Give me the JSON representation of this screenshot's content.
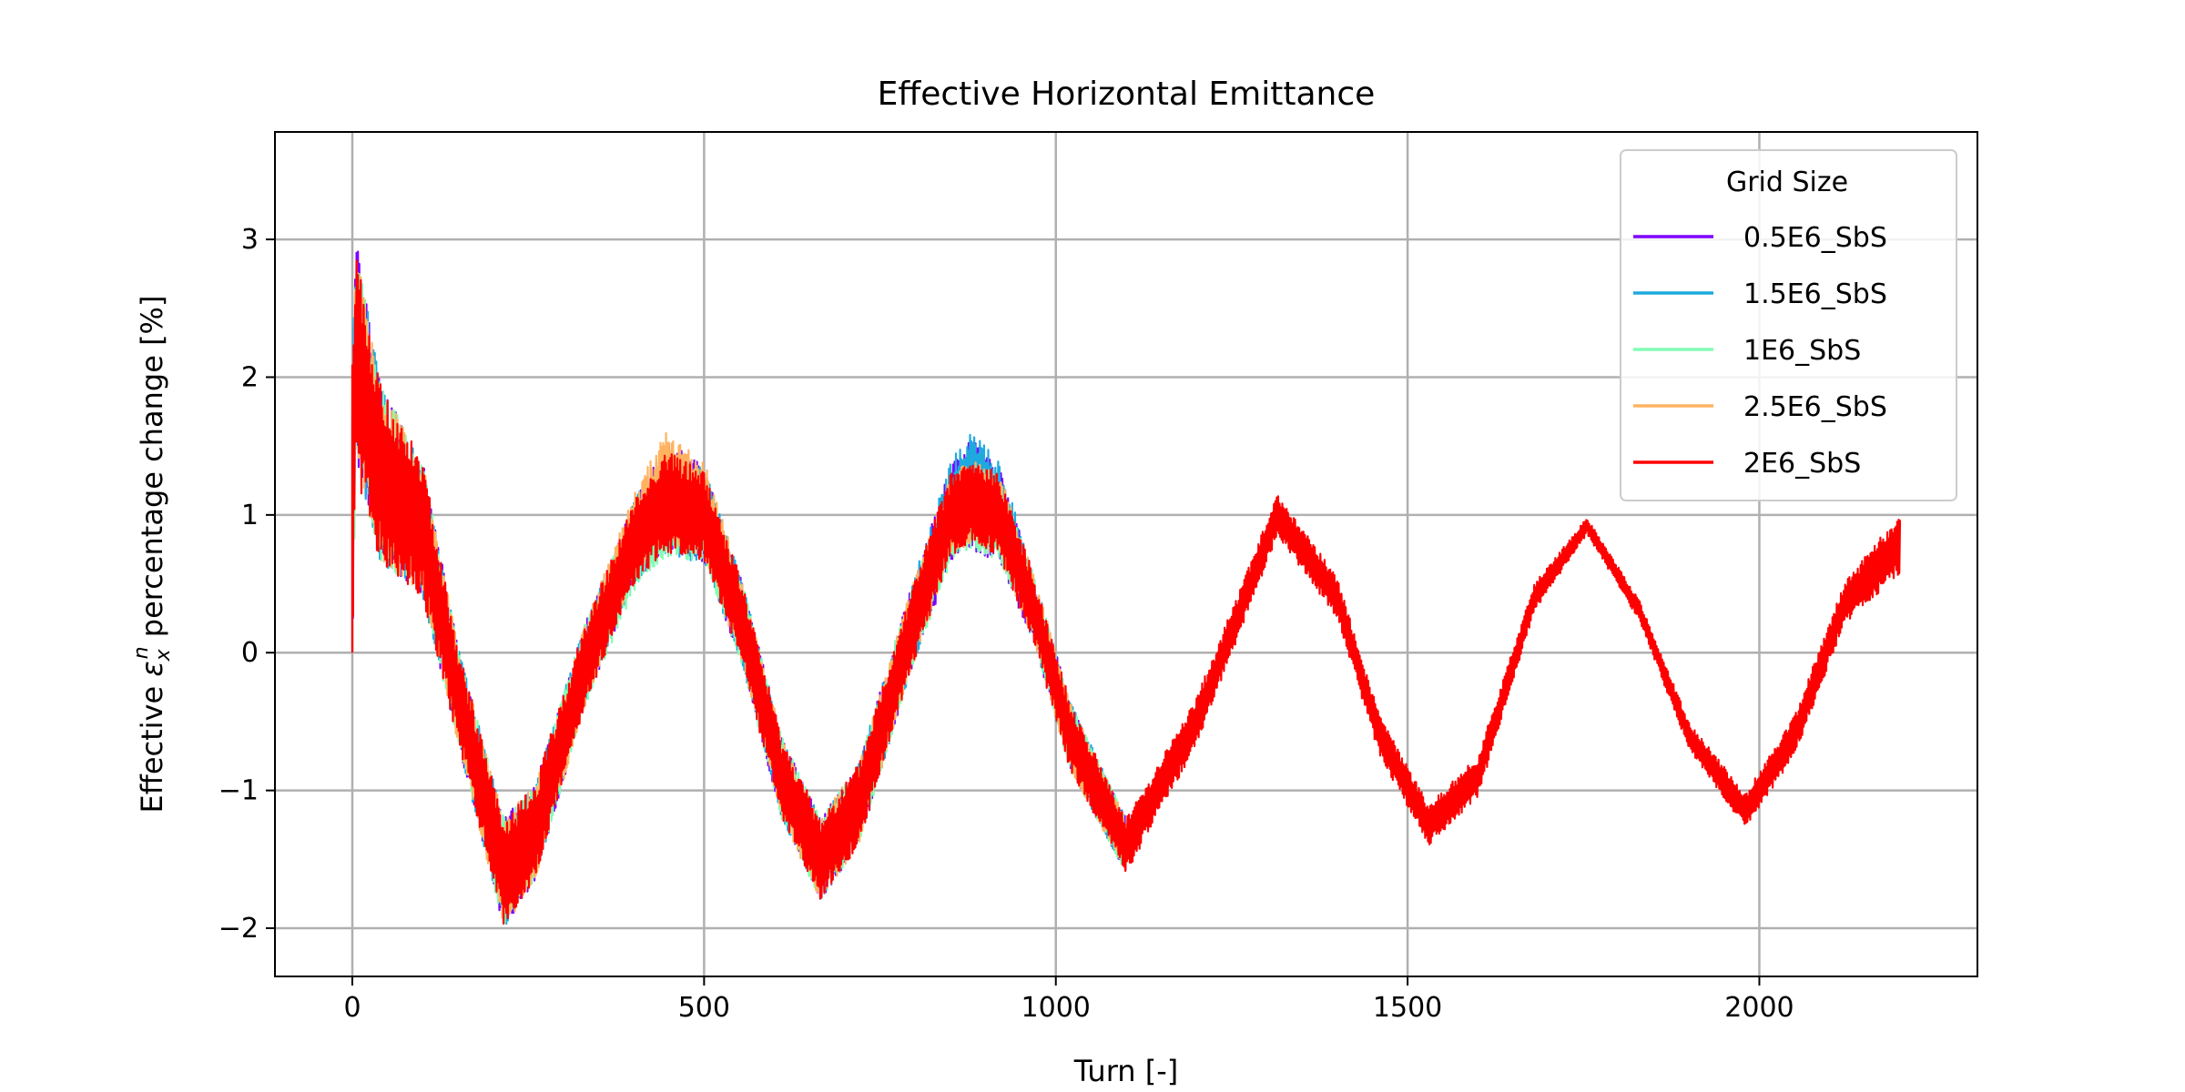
{
  "chart_data": {
    "type": "line",
    "title": "Effective Horizontal Emittance",
    "xlabel": "Turn [-]",
    "ylabel_prefix": "Effective ",
    "ylabel_symbol": "ε",
    "ylabel_sub": "x",
    "ylabel_sup": "n",
    "ylabel_suffix": " percentage change [%]",
    "xlim": [
      -110,
      2310
    ],
    "ylim": [
      -2.35,
      3.78
    ],
    "xticks": [
      0,
      500,
      1000,
      1500,
      2000
    ],
    "yticks": [
      -2,
      -1,
      0,
      1,
      2,
      3
    ],
    "xtick_labels": [
      "0",
      "500",
      "1000",
      "1500",
      "2000"
    ],
    "ytick_labels": [
      "−2",
      "−1",
      "0",
      "1",
      "2",
      "3"
    ],
    "grid": true,
    "legend": {
      "title": "Grid Size",
      "placement": "top-right"
    },
    "series": [
      {
        "name": "0.5E6_SbS",
        "color": "#7f00ff",
        "x": [
          0,
          5,
          40,
          100,
          150,
          215,
          260,
          330,
          400,
          445,
          500,
          555,
          610,
          665,
          720,
          790,
          850,
          880,
          920,
          970,
          1020,
          1100
        ],
        "y": [
          1.0,
          2.2,
          1.3,
          0.9,
          -0.3,
          -1.6,
          -1.3,
          -0.1,
          0.8,
          1.15,
          1.0,
          0.2,
          -0.9,
          -1.5,
          -1.1,
          0.1,
          1.0,
          1.15,
          1.0,
          0.3,
          -0.6,
          -1.4
        ],
        "band": [
          2.3,
          1.7,
          1.3,
          1.0,
          0.7,
          0.8,
          0.7,
          0.6,
          0.6,
          0.8,
          0.7,
          0.6,
          0.6,
          0.6,
          0.6,
          0.6,
          0.7,
          0.8,
          0.7,
          0.5,
          0.5,
          0.4
        ]
      },
      {
        "name": "1.5E6_SbS",
        "color": "#1eaadf",
        "x": [
          0,
          5,
          40,
          100,
          150,
          215,
          260,
          330,
          400,
          445,
          500,
          555,
          610,
          665,
          720,
          790,
          850,
          880,
          920,
          970,
          1020,
          1100
        ],
        "y": [
          1.0,
          2.2,
          1.3,
          0.9,
          -0.3,
          -1.6,
          -1.3,
          -0.1,
          0.8,
          1.1,
          1.0,
          0.2,
          -0.9,
          -1.5,
          -1.1,
          0.1,
          1.05,
          1.2,
          1.05,
          0.3,
          -0.6,
          -1.4
        ],
        "band": [
          2.2,
          1.6,
          1.3,
          1.0,
          0.7,
          0.8,
          0.7,
          0.6,
          0.6,
          0.8,
          0.7,
          0.6,
          0.6,
          0.6,
          0.6,
          0.6,
          0.7,
          0.8,
          0.7,
          0.5,
          0.5,
          0.4
        ]
      },
      {
        "name": "1E6_SbS",
        "color": "#80ffb4",
        "x": [
          0,
          5,
          40,
          100,
          150,
          215,
          260,
          330,
          400,
          445,
          500,
          555,
          610,
          665,
          720,
          790,
          850,
          880,
          920,
          970,
          1020,
          1100
        ],
        "y": [
          1.0,
          2.2,
          1.3,
          0.9,
          -0.3,
          -1.6,
          -1.3,
          -0.1,
          0.75,
          1.05,
          0.95,
          0.2,
          -0.9,
          -1.5,
          -1.1,
          0.1,
          0.95,
          1.05,
          0.95,
          0.3,
          -0.6,
          -1.4
        ],
        "band": [
          2.2,
          1.6,
          1.3,
          1.0,
          0.7,
          0.8,
          0.7,
          0.6,
          0.6,
          0.7,
          0.6,
          0.6,
          0.6,
          0.6,
          0.6,
          0.6,
          0.6,
          0.6,
          0.6,
          0.5,
          0.5,
          0.4
        ]
      },
      {
        "name": "2.5E6_SbS",
        "color": "#ffb360",
        "x": [
          0,
          5,
          40,
          100,
          150,
          215,
          260,
          330,
          400,
          445,
          500,
          555,
          610,
          665,
          720,
          790,
          850,
          880,
          920,
          970,
          1020,
          1100
        ],
        "y": [
          1.0,
          2.2,
          1.3,
          0.9,
          -0.3,
          -1.6,
          -1.3,
          -0.1,
          0.85,
          1.2,
          1.05,
          0.2,
          -0.9,
          -1.5,
          -1.1,
          0.1,
          1.0,
          1.1,
          1.0,
          0.3,
          -0.6,
          -1.4
        ],
        "band": [
          2.2,
          1.6,
          1.3,
          1.0,
          0.7,
          0.8,
          0.7,
          0.6,
          0.6,
          0.8,
          0.7,
          0.6,
          0.6,
          0.6,
          0.6,
          0.6,
          0.6,
          0.6,
          0.6,
          0.5,
          0.5,
          0.4
        ]
      },
      {
        "name": "2E6_SbS",
        "color": "#ff0000",
        "x": [
          0,
          5,
          40,
          100,
          150,
          215,
          260,
          330,
          400,
          445,
          500,
          555,
          610,
          665,
          720,
          790,
          850,
          880,
          920,
          970,
          1020,
          1100,
          1200,
          1315,
          1400,
          1460,
          1530,
          1600,
          1680,
          1755,
          1830,
          1900,
          1980,
          2050,
          2120,
          2200
        ],
        "y": [
          1.0,
          2.1,
          1.3,
          0.9,
          -0.3,
          -1.6,
          -1.3,
          -0.1,
          0.8,
          1.1,
          1.0,
          0.2,
          -0.9,
          -1.5,
          -1.1,
          0.1,
          1.0,
          1.1,
          1.0,
          0.3,
          -0.6,
          -1.4,
          -0.5,
          1.0,
          0.4,
          -0.6,
          -1.25,
          -0.9,
          0.4,
          0.92,
          0.3,
          -0.6,
          -1.15,
          -0.6,
          0.35,
          0.8
        ],
        "band": [
          2.2,
          1.6,
          1.3,
          1.0,
          0.7,
          0.75,
          0.7,
          0.6,
          0.6,
          0.75,
          0.65,
          0.6,
          0.6,
          0.6,
          0.6,
          0.6,
          0.6,
          0.6,
          0.6,
          0.5,
          0.5,
          0.4,
          0.35,
          0.3,
          0.3,
          0.3,
          0.3,
          0.3,
          0.2,
          0.12,
          0.15,
          0.2,
          0.25,
          0.3,
          0.3,
          0.45
        ]
      }
    ]
  }
}
